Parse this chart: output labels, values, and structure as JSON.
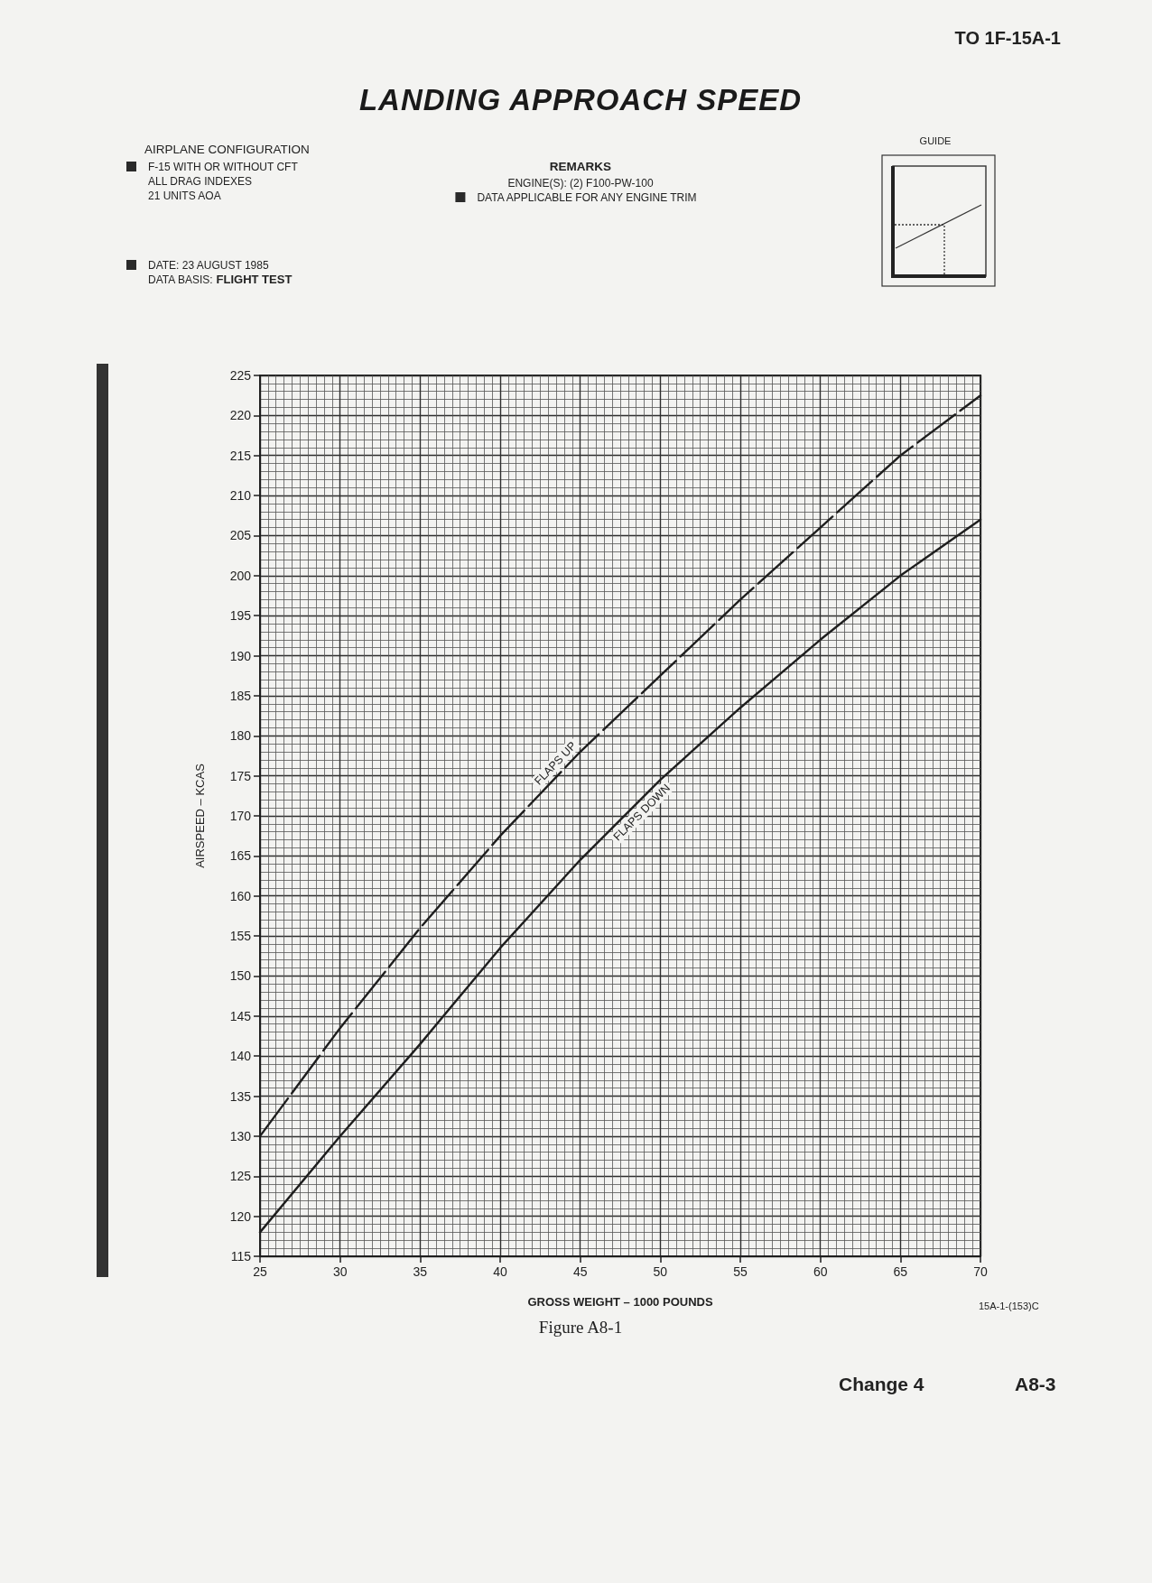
{
  "chart_data": {
    "type": "line",
    "title": "LANDING APPROACH SPEED",
    "xlabel": "GROSS WEIGHT – 1000 POUNDS",
    "ylabel": "AIRSPEED – KCAS",
    "x": [
      25,
      30,
      35,
      40,
      45,
      50,
      55,
      60,
      65,
      70
    ],
    "series": [
      {
        "name": "FLAPS UP",
        "color": "#1e1e1e",
        "line_style": "dashed",
        "values": [
          130,
          143.5,
          156,
          167.5,
          178,
          187.5,
          197,
          206,
          215,
          222.5
        ]
      },
      {
        "name": "FLAPS DOWN",
        "color": "#1e1e1e",
        "line_style": "solid",
        "values": [
          118,
          130,
          141.5,
          153.5,
          164.5,
          174.5,
          183.5,
          192,
          200,
          207
        ]
      }
    ],
    "xlim": [
      25,
      70
    ],
    "xticks": [
      25,
      30,
      35,
      40,
      45,
      50,
      55,
      60,
      65,
      70
    ],
    "ylim": [
      115,
      225
    ],
    "yticks": [
      115,
      120,
      125,
      130,
      135,
      140,
      145,
      150,
      155,
      160,
      165,
      170,
      175,
      180,
      185,
      190,
      195,
      200,
      205,
      210,
      215,
      220,
      225
    ],
    "grid": true,
    "annotations": [
      "TO 1F-15A-1",
      "AIRPLANE CONFIGURATION",
      "F-15 WITH OR WITHOUT CFT\nALL DRAG INDEXES\n21 UNITS AOA",
      "DATE: 23 AUGUST 1985",
      "DATA BASIS:",
      "FLIGHT TEST",
      "REMARKS",
      "ENGINE(S): (2) F100-PW-100",
      "DATA APPLICABLE FOR ANY ENGINE TRIM",
      "GUIDE",
      "15A-1-(153)C",
      "Figure A8-1",
      "Change 4",
      "A8-3"
    ]
  }
}
